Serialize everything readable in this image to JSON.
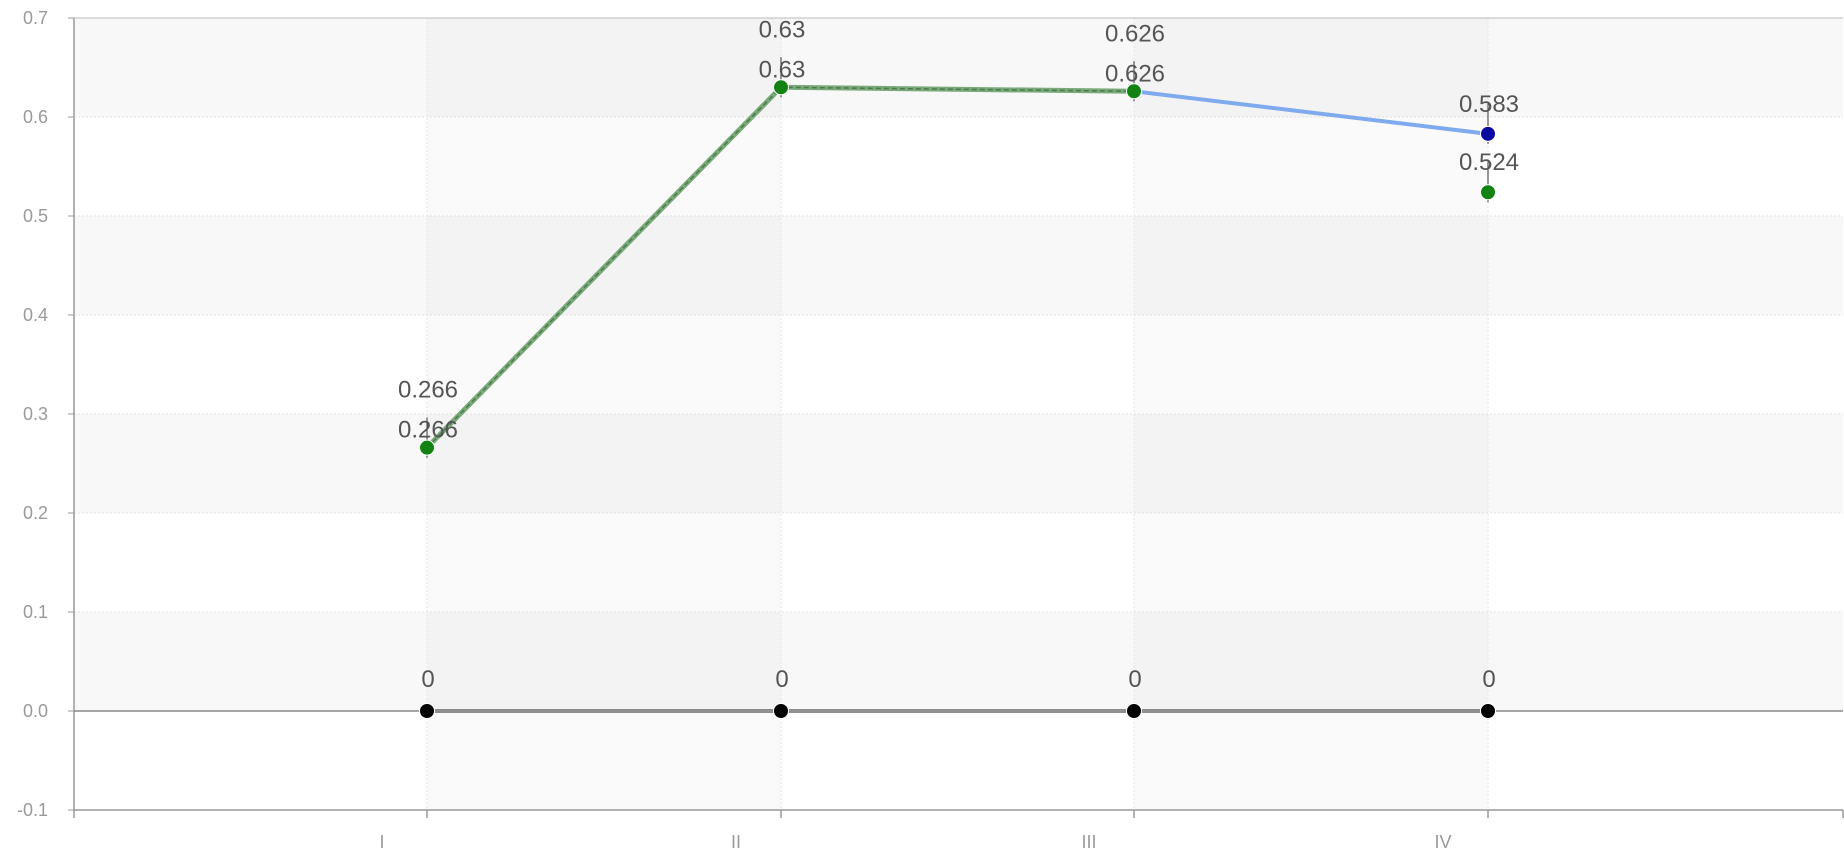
{
  "chart_data": {
    "type": "line",
    "title": "",
    "xlabel": "",
    "ylabel": "",
    "categories": [
      "I",
      "II",
      "III",
      "IV"
    ],
    "ylim": [
      -0.1,
      0.7
    ],
    "yticks": [
      "0.7",
      "0.6",
      "0.5",
      "0.4",
      "0.3",
      "0.2",
      "0.1",
      "0.0",
      "-0.1"
    ],
    "grid": true,
    "legend": "none",
    "series": [
      {
        "values": [
          0.266,
          0.63,
          0.626,
          0.583
        ],
        "labels": [
          "0.266",
          "0.63",
          "0.626",
          "0.583"
        ],
        "color": "#7faaee",
        "marker_color": "#0a0aa0"
      },
      {
        "values": [
          0.266,
          0.63,
          0.626,
          0.524
        ],
        "labels": [
          "0.266",
          "0.63",
          "0.626",
          "0.524"
        ],
        "color": "#7aaa7a",
        "marker_color": "#128212",
        "dashed": true,
        "connect_last": false
      },
      {
        "values": [
          0,
          0,
          0,
          0
        ],
        "labels": [
          "0",
          "0",
          "0",
          "0"
        ],
        "color": "#222222",
        "marker_color": "#000000"
      }
    ]
  }
}
